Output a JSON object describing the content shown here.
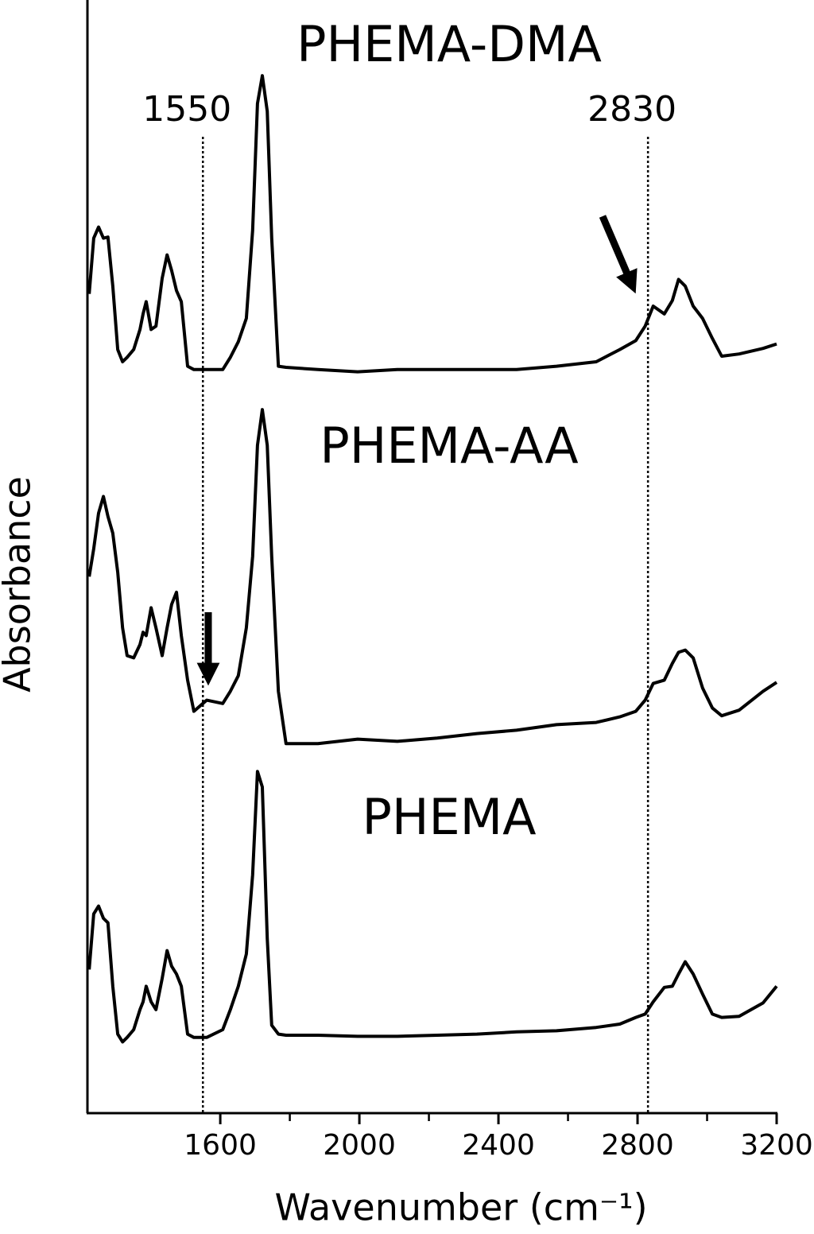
{
  "chart_data": {
    "type": "line",
    "xlabel": "Wavenumber (cm⁻¹)",
    "ylabel": "Absorbance",
    "xlim": [
      1218,
      3200
    ],
    "ylim": [
      0,
      100
    ],
    "xticks": [
      1600,
      2000,
      2400,
      2800,
      3200
    ],
    "xminor_ticks": [
      1800,
      2200,
      2600,
      3000
    ],
    "vlines": [
      1550,
      2830
    ],
    "x": [
      1223,
      1236,
      1250,
      1264,
      1277,
      1291,
      1305,
      1319,
      1332,
      1351,
      1369,
      1378,
      1387,
      1401,
      1415,
      1433,
      1447,
      1460,
      1474,
      1488,
      1506,
      1524,
      1561,
      1607,
      1629,
      1652,
      1675,
      1693,
      1707,
      1721,
      1735,
      1748,
      1767,
      1789,
      1881,
      1995,
      2109,
      2224,
      2338,
      2452,
      2567,
      2681,
      2749,
      2795,
      2822,
      2845,
      2877,
      2900,
      2918,
      2937,
      2960,
      2987,
      3015,
      3042,
      3092,
      3161,
      3200
    ],
    "series": [
      {
        "name": "PHEMA-DMA",
        "color": "#000000",
        "values": [
          73.6,
          78.6,
          79.6,
          78.6,
          78.7,
          74.3,
          68.6,
          67.5,
          67.9,
          68.6,
          70.4,
          71.8,
          72.9,
          70.4,
          70.7,
          75,
          77.1,
          75.7,
          73.9,
          72.9,
          67.1,
          66.8,
          66.8,
          66.8,
          67.9,
          69.3,
          71.4,
          79.3,
          90.7,
          93.2,
          90,
          78.6,
          67.1,
          67,
          66.8,
          66.6,
          66.8,
          66.8,
          66.8,
          66.8,
          67.1,
          67.5,
          68.6,
          69.4,
          70.7,
          72.5,
          71.8,
          73,
          74.9,
          74.3,
          72.5,
          71.4,
          69.6,
          68,
          68.2,
          68.7,
          69.1
        ]
      },
      {
        "name": "PHEMA-AA",
        "color": "#000000",
        "values": [
          48.2,
          50.7,
          53.9,
          55.4,
          53.6,
          52.1,
          48.6,
          43.6,
          41.1,
          40.9,
          42.1,
          43.2,
          42.9,
          45.4,
          43.6,
          41.1,
          43.6,
          45.7,
          46.8,
          42.9,
          38.9,
          36.1,
          37.1,
          36.8,
          37.9,
          39.3,
          43.6,
          50,
          60,
          63.2,
          60,
          50,
          37.9,
          33.2,
          33.2,
          33.6,
          33.4,
          33.7,
          34.1,
          34.4,
          34.9,
          35.1,
          35.6,
          36.1,
          37.1,
          38.6,
          38.9,
          40.4,
          41.4,
          41.6,
          40.9,
          38.2,
          36.4,
          35.7,
          36.2,
          37.9,
          38.7
        ]
      },
      {
        "name": "PHEMA",
        "color": "#000000",
        "values": [
          12.9,
          17.9,
          18.6,
          17.5,
          17.1,
          11.4,
          7.1,
          6.4,
          6.8,
          7.5,
          9.3,
          10,
          11.4,
          10,
          9.3,
          12.1,
          14.6,
          13.2,
          12.5,
          11.4,
          7.1,
          6.8,
          6.8,
          7.5,
          9.3,
          11.4,
          14.3,
          21.4,
          30.7,
          29.3,
          15.7,
          7.9,
          7.1,
          7,
          7,
          6.9,
          6.9,
          7,
          7.1,
          7.3,
          7.4,
          7.7,
          8,
          8.6,
          8.9,
          10,
          11.3,
          11.4,
          12.5,
          13.6,
          12.5,
          10.7,
          8.9,
          8.6,
          8.7,
          9.9,
          11.4
        ]
      }
    ]
  }
}
